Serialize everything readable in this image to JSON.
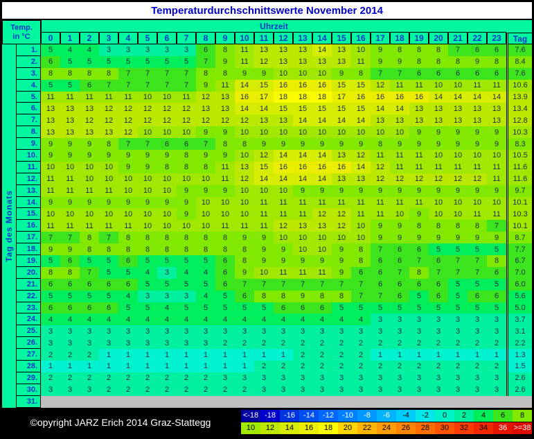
{
  "title": "Temperaturdurchschnittswerte November 2014",
  "header": {
    "temp_line1": "Temp.",
    "temp_line2": "in °C",
    "uhrzeit": "Uhrzeit",
    "tag": "Tag"
  },
  "side_label": "Tag des Monats",
  "footer": {
    "copyright": "©opyright JARZ Erich 2014 Graz-Stattegg"
  },
  "colors": {
    "panel": "#00F7A0",
    "title_blue": "#0000C8",
    "label_blue": "#0033CC",
    "value_ink": "#1E2A46",
    "row31_gray": "#C0C0C0",
    "footer_bg": "#000000",
    "bins": {
      "0": "#00F2CE",
      "2": "#00F0A0",
      "4": "#00ED5C",
      "6": "#3BE41C",
      "8": "#81E800",
      "10": "#A0E800",
      "12": "#BCE800",
      "14": "#D6EC00",
      "16": "#ECEE00",
      "18": "#FBFB00"
    }
  },
  "chart_data": {
    "type": "heatmap",
    "title": "Temperaturdurchschnittswerte November 2014",
    "xlabel": "Uhrzeit",
    "ylabel": "Tag des Monats",
    "unit": "°C",
    "x": [
      0,
      1,
      2,
      3,
      4,
      5,
      6,
      7,
      8,
      9,
      10,
      11,
      12,
      13,
      14,
      15,
      16,
      17,
      18,
      19,
      20,
      21,
      22,
      23
    ],
    "avg_column_label": "Tag",
    "rows": [
      {
        "day": "1.",
        "values": [
          5,
          4,
          4,
          3,
          3,
          3,
          3,
          3,
          6,
          8,
          11,
          13,
          13,
          13,
          14,
          13,
          10,
          9,
          8,
          8,
          8,
          7,
          6,
          6
        ],
        "avg": "7.6"
      },
      {
        "day": "2.",
        "values": [
          6,
          5,
          5,
          5,
          5,
          5,
          5,
          5,
          7,
          9,
          11,
          12,
          13,
          13,
          13,
          13,
          11,
          9,
          9,
          8,
          8,
          8,
          9,
          8
        ],
        "avg": "8.4"
      },
      {
        "day": "3.",
        "values": [
          8,
          8,
          8,
          8,
          7,
          7,
          7,
          7,
          8,
          8,
          9,
          9,
          10,
          10,
          10,
          9,
          8,
          7,
          7,
          6,
          6,
          6,
          6,
          6
        ],
        "avg": "7.6"
      },
      {
        "day": "4.",
        "values": [
          5,
          5,
          6,
          7,
          7,
          7,
          7,
          7,
          9,
          11,
          14,
          15,
          16,
          16,
          16,
          15,
          15,
          12,
          11,
          11,
          10,
          10,
          11,
          11
        ],
        "avg": "10.6"
      },
      {
        "day": "5.",
        "values": [
          11,
          11,
          11,
          11,
          11,
          10,
          10,
          11,
          12,
          13,
          16,
          17,
          18,
          18,
          18,
          17,
          16,
          16,
          16,
          16,
          14,
          14,
          14,
          14
        ],
        "avg": "13.9"
      },
      {
        "day": "6.",
        "values": [
          13,
          13,
          13,
          12,
          12,
          12,
          12,
          12,
          13,
          13,
          14,
          14,
          15,
          15,
          15,
          15,
          15,
          14,
          14,
          13,
          13,
          13,
          13,
          13
        ],
        "avg": "13.4"
      },
      {
        "day": "7.",
        "values": [
          13,
          13,
          12,
          12,
          12,
          12,
          12,
          12,
          12,
          12,
          12,
          13,
          13,
          14,
          14,
          14,
          14,
          13,
          13,
          13,
          13,
          13,
          13,
          13
        ],
        "avg": "12.8"
      },
      {
        "day": "8.",
        "values": [
          13,
          13,
          13,
          13,
          12,
          10,
          10,
          10,
          9,
          9,
          10,
          10,
          10,
          10,
          10,
          10,
          10,
          10,
          10,
          9,
          9,
          9,
          9,
          9
        ],
        "avg": "10.3"
      },
      {
        "day": "9.",
        "values": [
          9,
          9,
          9,
          8,
          7,
          7,
          6,
          6,
          7,
          8,
          8,
          9,
          9,
          9,
          9,
          9,
          9,
          8,
          9,
          9,
          9,
          9,
          9,
          9
        ],
        "avg": "8.3"
      },
      {
        "day": "10.",
        "values": [
          9,
          9,
          9,
          9,
          9,
          9,
          9,
          8,
          9,
          9,
          10,
          12,
          14,
          14,
          14,
          13,
          12,
          11,
          11,
          11,
          10,
          10,
          10,
          10
        ],
        "avg": "10.5"
      },
      {
        "day": "11.",
        "values": [
          10,
          10,
          10,
          10,
          9,
          9,
          8,
          8,
          8,
          11,
          13,
          15,
          16,
          16,
          16,
          16,
          14,
          12,
          11,
          11,
          11,
          11,
          11,
          11
        ],
        "avg": "11.6"
      },
      {
        "day": "12.",
        "values": [
          11,
          11,
          10,
          10,
          10,
          10,
          10,
          10,
          10,
          11,
          12,
          14,
          14,
          14,
          14,
          13,
          13,
          12,
          12,
          12,
          12,
          12,
          12,
          11
        ],
        "avg": "11.6"
      },
      {
        "day": "13.",
        "values": [
          11,
          11,
          11,
          11,
          10,
          10,
          10,
          9,
          9,
          9,
          10,
          10,
          10,
          9,
          9,
          9,
          9,
          9,
          9,
          9,
          9,
          9,
          9,
          9
        ],
        "avg": "9.7"
      },
      {
        "day": "14.",
        "values": [
          9,
          9,
          9,
          9,
          9,
          9,
          9,
          9,
          10,
          10,
          10,
          11,
          11,
          11,
          11,
          11,
          11,
          11,
          11,
          11,
          10,
          10,
          10,
          10
        ],
        "avg": "10.1"
      },
      {
        "day": "15.",
        "values": [
          10,
          10,
          10,
          10,
          10,
          10,
          10,
          9,
          10,
          10,
          10,
          11,
          11,
          11,
          12,
          12,
          11,
          11,
          10,
          9,
          10,
          10,
          11,
          11
        ],
        "avg": "10.3"
      },
      {
        "day": "16.",
        "values": [
          11,
          11,
          11,
          11,
          11,
          10,
          10,
          10,
          10,
          11,
          11,
          11,
          12,
          13,
          13,
          12,
          10,
          9,
          9,
          8,
          8,
          8,
          8,
          7
        ],
        "avg": "10.1"
      },
      {
        "day": "17.",
        "values": [
          7,
          7,
          8,
          7,
          8,
          8,
          8,
          8,
          8,
          8,
          9,
          9,
          10,
          10,
          10,
          10,
          10,
          9,
          9,
          9,
          9,
          9,
          9,
          9
        ],
        "avg": "8.7"
      },
      {
        "day": "18.",
        "values": [
          9,
          9,
          8,
          8,
          8,
          8,
          8,
          8,
          8,
          8,
          8,
          9,
          9,
          10,
          10,
          9,
          8,
          7,
          6,
          6,
          5,
          5,
          5,
          5
        ],
        "avg": "7.7"
      },
      {
        "day": "19.",
        "values": [
          5,
          6,
          5,
          5,
          6,
          5,
          5,
          5,
          5,
          6,
          8,
          9,
          9,
          9,
          9,
          9,
          8,
          6,
          6,
          7,
          6,
          7,
          7,
          8
        ],
        "avg": "6.7"
      },
      {
        "day": "20.",
        "values": [
          8,
          8,
          7,
          5,
          5,
          4,
          3,
          4,
          4,
          6,
          9,
          10,
          11,
          11,
          11,
          9,
          6,
          6,
          7,
          8,
          7,
          7,
          7,
          6
        ],
        "avg": "7.0"
      },
      {
        "day": "21.",
        "values": [
          6,
          6,
          6,
          6,
          6,
          5,
          5,
          5,
          5,
          6,
          7,
          7,
          7,
          7,
          7,
          7,
          7,
          6,
          6,
          6,
          6,
          5,
          5,
          5
        ],
        "avg": "6.0"
      },
      {
        "day": "22.",
        "values": [
          5,
          5,
          5,
          5,
          4,
          3,
          3,
          3,
          4,
          5,
          6,
          8,
          8,
          9,
          8,
          8,
          7,
          7,
          6,
          5,
          6,
          5,
          6,
          6
        ],
        "avg": "5.6"
      },
      {
        "day": "23.",
        "values": [
          6,
          6,
          6,
          6,
          5,
          5,
          4,
          5,
          5,
          5,
          5,
          5,
          6,
          6,
          6,
          5,
          5,
          5,
          5,
          5,
          5,
          5,
          5,
          5
        ],
        "avg": "5.0"
      },
      {
        "day": "24.",
        "values": [
          4,
          4,
          4,
          4,
          4,
          4,
          4,
          4,
          4,
          4,
          4,
          4,
          4,
          4,
          4,
          4,
          4,
          3,
          3,
          3,
          3,
          3,
          3,
          3
        ],
        "avg": "3.7"
      },
      {
        "day": "25.",
        "values": [
          3,
          3,
          3,
          3,
          3,
          3,
          3,
          3,
          3,
          3,
          3,
          3,
          3,
          3,
          3,
          3,
          3,
          3,
          3,
          3,
          3,
          3,
          3,
          3
        ],
        "avg": "3.1"
      },
      {
        "day": "26.",
        "values": [
          3,
          3,
          3,
          3,
          3,
          3,
          3,
          3,
          3,
          2,
          2,
          2,
          2,
          2,
          2,
          2,
          2,
          2,
          2,
          2,
          2,
          2,
          2,
          2
        ],
        "avg": "2.2"
      },
      {
        "day": "27.",
        "values": [
          2,
          2,
          2,
          1,
          1,
          1,
          1,
          1,
          1,
          1,
          1,
          1,
          1,
          2,
          2,
          2,
          2,
          1,
          1,
          1,
          1,
          1,
          1,
          1
        ],
        "avg": "1.3"
      },
      {
        "day": "28.",
        "values": [
          1,
          1,
          1,
          1,
          1,
          1,
          1,
          1,
          1,
          1,
          1,
          2,
          2,
          2,
          2,
          2,
          2,
          2,
          2,
          2,
          2,
          2,
          2,
          2
        ],
        "avg": "1.5"
      },
      {
        "day": "29.",
        "values": [
          2,
          2,
          2,
          2,
          2,
          2,
          2,
          2,
          2,
          3,
          3,
          3,
          3,
          3,
          3,
          3,
          3,
          3,
          3,
          3,
          3,
          3,
          3,
          3
        ],
        "avg": "2.6"
      },
      {
        "day": "30.",
        "values": [
          3,
          3,
          3,
          2,
          2,
          2,
          2,
          2,
          2,
          2,
          2,
          3,
          3,
          3,
          3,
          3,
          3,
          3,
          3,
          3,
          3,
          3,
          3,
          3
        ],
        "avg": "2.6"
      },
      {
        "day": "31.",
        "values": [],
        "avg": null
      }
    ],
    "legend": {
      "row1": [
        {
          "label": "<-18",
          "bg": "#0000A0",
          "fg": "#FFFFFF"
        },
        {
          "label": "-18",
          "bg": "#0000CC",
          "fg": "#FFFFFF"
        },
        {
          "label": "-16",
          "bg": "#0033E0",
          "fg": "#FFFFFF"
        },
        {
          "label": "-14",
          "bg": "#0050F0",
          "fg": "#FFFFFF"
        },
        {
          "label": "-12",
          "bg": "#0068FF",
          "fg": "#FFFFFF"
        },
        {
          "label": "-10",
          "bg": "#0080FF",
          "fg": "#FFFFFF"
        },
        {
          "label": "-8",
          "bg": "#0098FF",
          "fg": "#FFFFFF"
        },
        {
          "label": "-6",
          "bg": "#00B4FF",
          "fg": "#FFFFFF"
        },
        {
          "label": "-4",
          "bg": "#00CCFA",
          "fg": "#000000"
        },
        {
          "label": "-2",
          "bg": "#00E8E8",
          "fg": "#000000"
        },
        {
          "label": "0",
          "bg": "#00F2C8",
          "fg": "#000000"
        },
        {
          "label": "2",
          "bg": "#00F0A0",
          "fg": "#000000"
        },
        {
          "label": "4",
          "bg": "#00ED5C",
          "fg": "#000000"
        },
        {
          "label": "6",
          "bg": "#3BE41C",
          "fg": "#000000"
        },
        {
          "label": "8",
          "bg": "#81E800",
          "fg": "#000000"
        }
      ],
      "row2": [
        {
          "label": "10",
          "bg": "#A0E800",
          "fg": "#000000"
        },
        {
          "label": "12",
          "bg": "#BCE800",
          "fg": "#000000"
        },
        {
          "label": "14",
          "bg": "#D6EC00",
          "fg": "#000000"
        },
        {
          "label": "16",
          "bg": "#ECEE00",
          "fg": "#000000"
        },
        {
          "label": "18",
          "bg": "#FBFB00",
          "fg": "#000000"
        },
        {
          "label": "20",
          "bg": "#FFD400",
          "fg": "#000000"
        },
        {
          "label": "22",
          "bg": "#FFB400",
          "fg": "#000000"
        },
        {
          "label": "24",
          "bg": "#FF9C00",
          "fg": "#000000"
        },
        {
          "label": "26",
          "bg": "#FF8400",
          "fg": "#000000"
        },
        {
          "label": "28",
          "bg": "#FF6C00",
          "fg": "#000000"
        },
        {
          "label": "30",
          "bg": "#FF5400",
          "fg": "#000000"
        },
        {
          "label": "32",
          "bg": "#FA3C00",
          "fg": "#000000"
        },
        {
          "label": "34",
          "bg": "#F22800",
          "fg": "#000000"
        },
        {
          "label": "36",
          "bg": "#E61400",
          "fg": "#FFFFFF"
        },
        {
          "label": ">=38",
          "bg": "#DC0A00",
          "fg": "#FFFFFF"
        }
      ]
    }
  }
}
